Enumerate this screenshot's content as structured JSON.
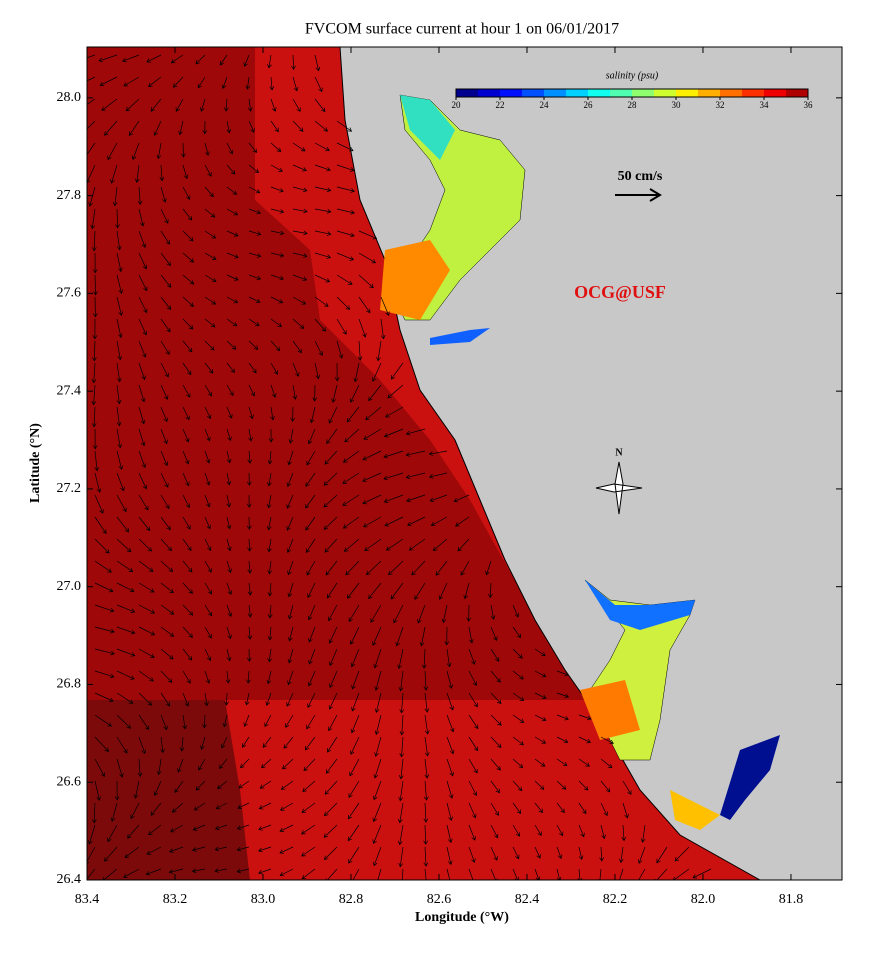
{
  "chart_data": {
    "type": "map",
    "title": "FVCOM surface current at hour 1 on 06/01/2017",
    "x_label": "Longitude (°W)",
    "y_label": "Latitude (°N)",
    "xlim": [
      83.4,
      81.684
    ],
    "ylim": [
      26.4,
      28.104
    ],
    "xticks": [
      83.4,
      {
        "value": 83.2,
        "label": "83.2"
      },
      {
        "value": 83,
        "label": "83.0"
      },
      82.8,
      82.6,
      82.4,
      82.2,
      {
        "value": 82,
        "label": "82.0"
      },
      81.8
    ],
    "yticks": [
      {
        "value": 26.4,
        "label": "26.4"
      },
      {
        "value": 26.6,
        "label": "26.6"
      },
      {
        "value": 26.8,
        "label": "26.8"
      },
      {
        "value": 27,
        "label": "27.0"
      },
      {
        "value": 27.2,
        "label": "27.2"
      },
      {
        "value": 27.4,
        "label": "27.4"
      },
      {
        "value": 27.6,
        "label": "27.6"
      },
      {
        "value": 27.8,
        "label": "27.8"
      },
      {
        "value": 28,
        "label": "28.0"
      }
    ],
    "colorbar": {
      "label": "salinity (psu)",
      "lim": [
        20,
        36
      ],
      "ticks": [
        20,
        22,
        24,
        26,
        28,
        30,
        32,
        34,
        36
      ],
      "colors": [
        "#00008f",
        "#0000cf",
        "#0010ff",
        "#0050ff",
        "#0090ff",
        "#00d0ff",
        "#10ffef",
        "#50ffaf",
        "#90ff6f",
        "#cfff30",
        "#ffef00",
        "#ffaf00",
        "#ff7000",
        "#ff3000",
        "#ef0000",
        "#af0000"
      ]
    },
    "scale_label": "50 cm/s",
    "watermark": "OCG@USF",
    "north_label": "N"
  }
}
